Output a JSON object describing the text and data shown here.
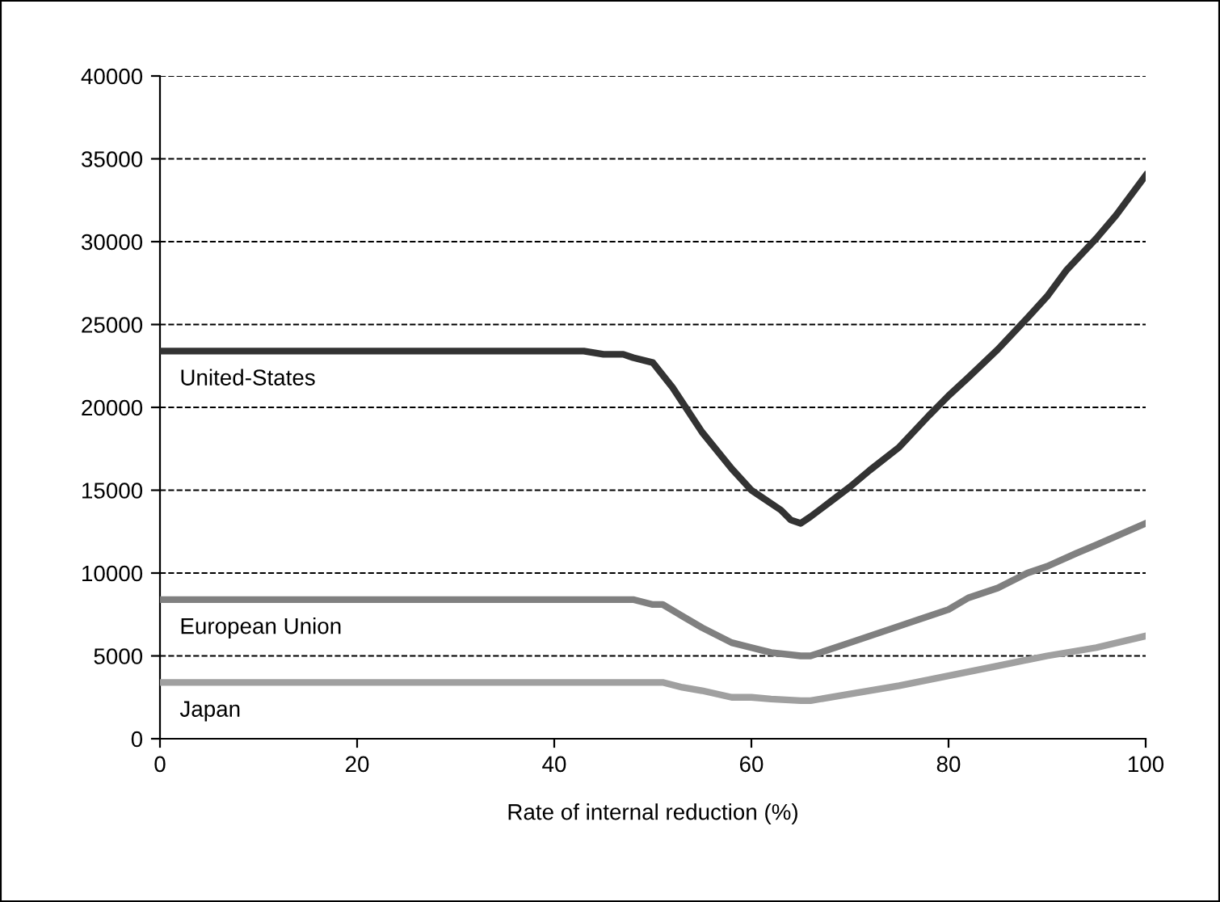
{
  "chart_data": {
    "type": "line",
    "xlabel": "Rate of internal reduction (%)",
    "xlim": [
      0,
      100
    ],
    "xticks": [
      0,
      20,
      40,
      60,
      80,
      100
    ],
    "ylim": [
      0,
      40000
    ],
    "yticks": [
      0,
      5000,
      10000,
      15000,
      20000,
      25000,
      30000,
      35000,
      40000
    ],
    "grid": "y",
    "legend": false,
    "marker": "none",
    "line_style": "solid",
    "series": [
      {
        "name": "United-States",
        "color": "#333333",
        "x": [
          0,
          43,
          45,
          47,
          48,
          50,
          52,
          55,
          58,
          60,
          63,
          64,
          65,
          66,
          68,
          70,
          72,
          75,
          78,
          80,
          82,
          85,
          88,
          90,
          92,
          95,
          97,
          100
        ],
        "values": [
          23400,
          23400,
          23200,
          23200,
          23000,
          22700,
          21200,
          18500,
          16300,
          15000,
          13800,
          13200,
          13000,
          13400,
          14300,
          15200,
          16200,
          17600,
          19500,
          20700,
          21800,
          23500,
          25400,
          26700,
          28300,
          30200,
          31600,
          34000
        ]
      },
      {
        "name": "European Union",
        "color": "#808080",
        "x": [
          0,
          48,
          50,
          51,
          53,
          55,
          58,
          60,
          62,
          65,
          66,
          70,
          75,
          80,
          82,
          85,
          88,
          90,
          93,
          95,
          100
        ],
        "values": [
          8400,
          8400,
          8100,
          8100,
          7400,
          6700,
          5800,
          5500,
          5200,
          5000,
          5000,
          5800,
          6800,
          7800,
          8500,
          9100,
          10000,
          10400,
          11200,
          11700,
          13000
        ]
      },
      {
        "name": "Japan",
        "color": "#a0a0a0",
        "x": [
          0,
          51,
          53,
          55,
          58,
          60,
          62,
          65,
          66,
          70,
          75,
          80,
          85,
          90,
          95,
          100
        ],
        "values": [
          3400,
          3400,
          3100,
          2900,
          2500,
          2500,
          2400,
          2300,
          2300,
          2700,
          3200,
          3800,
          4400,
          5000,
          5500,
          6200
        ]
      }
    ]
  }
}
